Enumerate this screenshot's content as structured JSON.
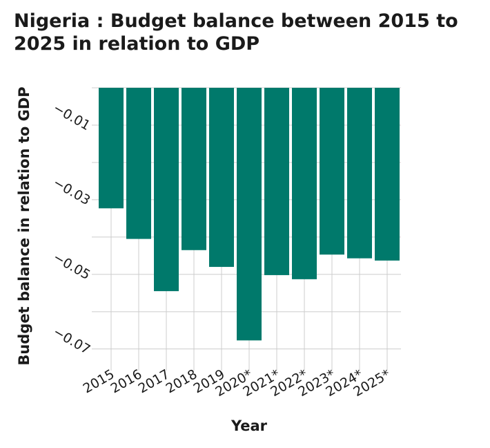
{
  "chart_data": {
    "type": "bar",
    "title": "Nigeria : Budget balance between 2015 to 2025 in relation to GDP",
    "xlabel": "Year",
    "ylabel": "Budget balance in relation to GDP",
    "categories": [
      "2015",
      "2016",
      "2017",
      "2018",
      "2019",
      "2020*",
      "2021*",
      "2022*",
      "2023*",
      "2024*",
      "2025*"
    ],
    "values": [
      -0.0323,
      -0.0405,
      -0.0545,
      -0.0435,
      -0.048,
      -0.0677,
      -0.0502,
      -0.0513,
      -0.0447,
      -0.0457,
      -0.0463
    ],
    "ylim": [
      -0.0743,
      0.0
    ],
    "yticks": [
      -0.01,
      -0.03,
      -0.05,
      -0.07
    ],
    "ytick_labels": [
      "−0.01",
      "−0.03",
      "−0.05",
      "−0.07"
    ],
    "grid": true,
    "bar_color": "#00796b"
  }
}
